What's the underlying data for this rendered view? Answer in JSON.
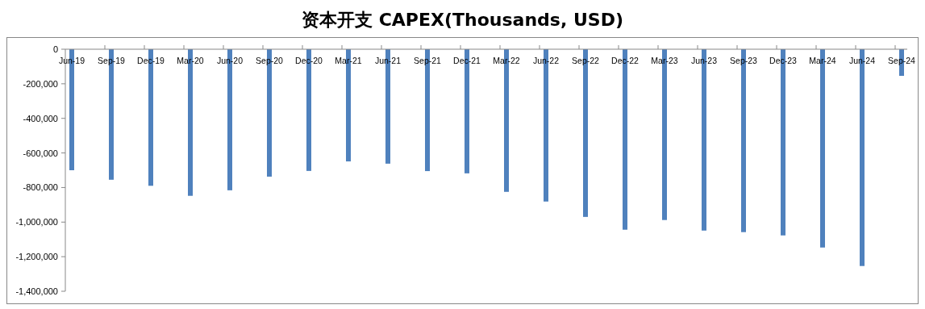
{
  "chart_data": {
    "type": "bar",
    "title": "资本开支 CAPEX(Thousands, USD)",
    "categories": [
      "Jun-19",
      "Sep-19",
      "Dec-19",
      "Mar-20",
      "Jun-20",
      "Sep-20",
      "Dec-20",
      "Mar-21",
      "Jun-21",
      "Sep-21",
      "Dec-21",
      "Mar-22",
      "Jun-22",
      "Sep-22",
      "Dec-22",
      "Mar-23",
      "Jun-23",
      "Sep-23",
      "Dec-23",
      "Mar-24",
      "Jun-24",
      "Sep-24"
    ],
    "values": [
      -700000,
      -755000,
      -790000,
      -848000,
      -816000,
      -737000,
      -704000,
      -649000,
      -662000,
      -705000,
      -718000,
      -825000,
      -881000,
      -970000,
      -1044000,
      -988000,
      -1049000,
      -1058000,
      -1077000,
      -1147000,
      -1254000,
      -154000
    ],
    "color": "#4f81bd",
    "ylim": [
      -1400000,
      0
    ],
    "yticks": [
      {
        "value": -1400000,
        "label": "-1,400,000"
      },
      {
        "value": -1200000,
        "label": "-1,200,000"
      },
      {
        "value": -1000000,
        "label": "-1,000,000"
      },
      {
        "value": -800000,
        "label": "-800,000"
      },
      {
        "value": -600000,
        "label": "-600,000"
      },
      {
        "value": -400000,
        "label": "-400,000"
      },
      {
        "value": -200000,
        "label": "-200,000"
      },
      0
    ],
    "grid": false
  }
}
